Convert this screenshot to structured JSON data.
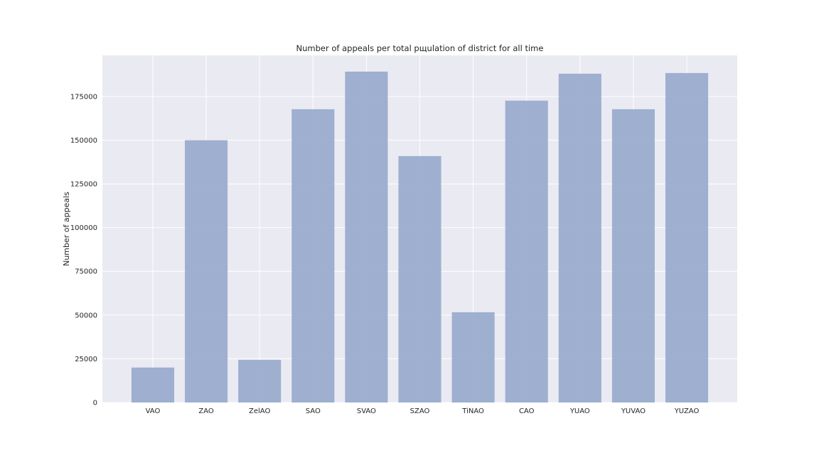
{
  "chart_data": {
    "type": "bar",
    "title": "Number of appeals per total pщulation of district for all time",
    "xlabel": "",
    "ylabel": "Number of appeals",
    "categories": [
      "VAO",
      "ZAO",
      "ZelAO",
      "SAO",
      "SVAO",
      "SZAO",
      "TiNAO",
      "CAO",
      "YUAO",
      "YUVAO",
      "YUZAO"
    ],
    "values": [
      20000,
      150000,
      24400,
      167700,
      189200,
      140900,
      51600,
      172600,
      188000,
      167700,
      188400
    ],
    "ylim": [
      0,
      198500
    ],
    "yticks": [
      0,
      25000,
      50000,
      75000,
      100000,
      125000,
      150000,
      175000
    ],
    "grid": true,
    "colors": {
      "bar": "#9aacce",
      "background": "#eaeaf2",
      "grid": "#ffffff"
    }
  }
}
